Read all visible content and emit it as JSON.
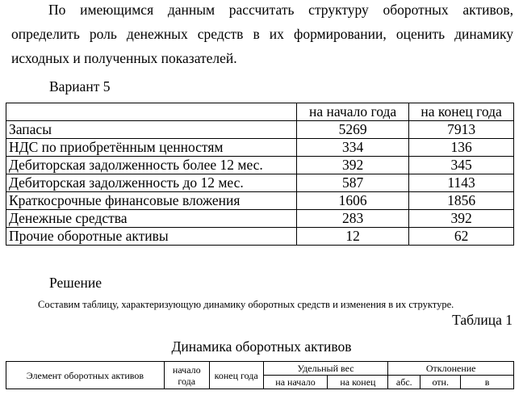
{
  "intro": "По имеющимся данным рассчитать структуру оборотных активов, определить роль денежных средств в их формировании, оценить динамику исходных и полученных показателей.",
  "variant": "Вариант 5",
  "table1": {
    "headers": [
      "",
      "на начало года",
      "на конец года"
    ],
    "rows": [
      {
        "name": "Запасы",
        "start": "5269",
        "end": "7913"
      },
      {
        "name": "НДС по приобретённым ценностям",
        "start": "334",
        "end": "136"
      },
      {
        "name": "Дебиторская задолженность более 12 мес.",
        "start": "392",
        "end": "345"
      },
      {
        "name": "Дебиторская задолженность до 12 мес.",
        "start": "587",
        "end": "1143"
      },
      {
        "name": "Краткосрочные финансовые вложения",
        "start": "1606",
        "end": "1856"
      },
      {
        "name": "Денежные средства",
        "start": "283",
        "end": "392"
      },
      {
        "name": "Прочие оборотные активы",
        "start": "12",
        "end": "62"
      }
    ]
  },
  "solution_heading": "Решение",
  "solution_text": "Составим таблицу,  характеризующую динамику оборотных средств и изменения в их структуре.",
  "table_number": "Таблица 1",
  "table_title": "Динамика оборотных активов",
  "table2": {
    "col_element": "Элемент оборотных активов",
    "col_start": "начало года",
    "col_end": "конец года",
    "col_share": "Удельный вес",
    "col_share_start": "на начало",
    "col_share_end": "на конец",
    "col_deviation": "Отклонение",
    "col_dev_abs": "абс.",
    "col_dev_rel": "отн.",
    "col_dev_share": "в"
  }
}
